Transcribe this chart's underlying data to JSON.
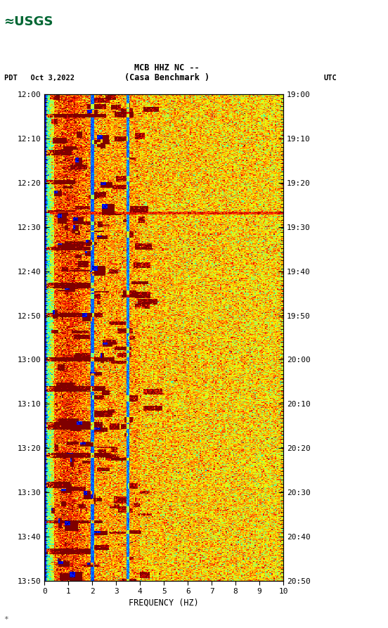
{
  "title_line1": "MCB HHZ NC --",
  "title_line2": "(Casa Benchmark )",
  "left_label": "PDT   Oct 3,2022",
  "right_label": "UTC",
  "xlabel": "FREQUENCY (HZ)",
  "freq_min": 0,
  "freq_max": 10,
  "freq_ticks": [
    0,
    1,
    2,
    3,
    4,
    5,
    6,
    7,
    8,
    9,
    10
  ],
  "time_left_labels": [
    "12:00",
    "12:10",
    "12:20",
    "12:30",
    "12:40",
    "12:50",
    "13:00",
    "13:10",
    "13:20",
    "13:30",
    "13:40",
    "13:50"
  ],
  "time_right_labels": [
    "19:00",
    "19:10",
    "19:20",
    "19:30",
    "19:40",
    "19:50",
    "20:00",
    "20:10",
    "20:20",
    "20:30",
    "20:40",
    "20:50"
  ],
  "fig_width": 5.52,
  "fig_height": 8.93,
  "bg_color": "#ffffff",
  "spectrogram_seed": 42,
  "n_time": 660,
  "n_freq": 200,
  "watermark_text": "*",
  "usgs_color": "#006633"
}
